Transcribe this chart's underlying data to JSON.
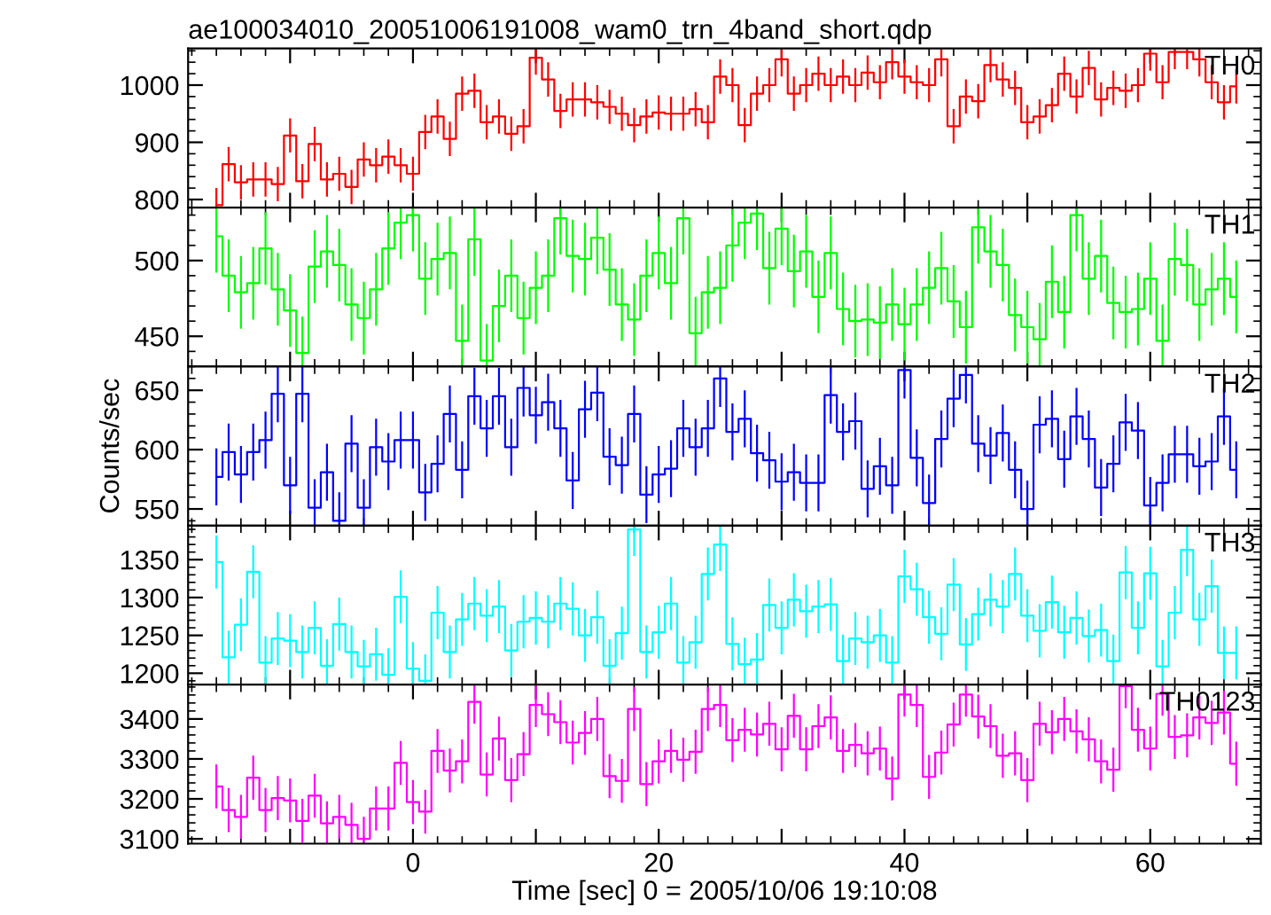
{
  "chart_data": [
    {
      "type": "step",
      "title": "ae100034010_20051006191008_wam0_trn_4band_short.qdp",
      "tick_labels": "y",
      "xlim": [
        -18.3,
        69
      ],
      "xticks": [
        {
          "value": -10,
          "label": null
        },
        {
          "value": 0,
          "label": null
        },
        {
          "value": 10,
          "label": null
        },
        {
          "value": 20,
          "label": null
        },
        {
          "value": 30,
          "label": null
        },
        {
          "value": 40,
          "label": null
        },
        {
          "value": 50,
          "label": null
        },
        {
          "value": 60,
          "label": null
        }
      ],
      "ylim": [
        786,
        1064
      ],
      "yticks": [
        800,
        900,
        1000
      ],
      "x": [
        -16,
        -15,
        -14,
        -13,
        -12,
        -11,
        -10,
        -9,
        -8,
        -7,
        -6,
        -5,
        -4,
        -3,
        -2,
        -1,
        0,
        1,
        2,
        3,
        4,
        5,
        6,
        7,
        8,
        9,
        10,
        11,
        12,
        13,
        14,
        15,
        16,
        17,
        18,
        19,
        20,
        21,
        22,
        23,
        24,
        25,
        26,
        27,
        28,
        29,
        30,
        31,
        32,
        33,
        34,
        35,
        36,
        37,
        38,
        39,
        40,
        41,
        42,
        43,
        44,
        45,
        46,
        47,
        48,
        49,
        50,
        51,
        52,
        53,
        54,
        55,
        56,
        57,
        58,
        59,
        60,
        61,
        62,
        63,
        64,
        65,
        66,
        67
      ],
      "series": [
        {
          "name": "TH0",
          "color": "#ff0000",
          "values": [
            790,
            862,
            830,
            835,
            835,
            827,
            912,
            832,
            897,
            835,
            845,
            822,
            870,
            860,
            875,
            860,
            845,
            918,
            945,
            906,
            985,
            990,
            935,
            945,
            915,
            928,
            1048,
            1010,
            955,
            975,
            975,
            970,
            962,
            950,
            930,
            945,
            952,
            950,
            950,
            958,
            935,
            1015,
            1000,
            930,
            985,
            1000,
            1045,
            985,
            1000,
            1020,
            1000,
            1015,
            1000,
            1022,
            1005,
            1040,
            1015,
            1005,
            1000,
            1045,
            928,
            980,
            972,
            1035,
            1010,
            995,
            935,
            945,
            965,
            1020,
            980,
            1030,
            975,
            995,
            990,
            1000,
            1055,
            1005,
            1058,
            1058,
            1045,
            1005,
            970,
            998
          ],
          "errors": [
            30,
            30,
            30,
            30,
            30,
            30,
            30,
            30,
            30,
            30,
            30,
            30,
            30,
            30,
            30,
            30,
            30,
            30,
            30,
            30,
            30,
            30,
            30,
            30,
            30,
            30,
            30,
            30,
            30,
            30,
            30,
            30,
            30,
            30,
            30,
            30,
            30,
            30,
            30,
            30,
            30,
            30,
            30,
            30,
            30,
            30,
            30,
            30,
            30,
            30,
            30,
            30,
            30,
            30,
            30,
            30,
            30,
            30,
            30,
            30,
            30,
            30,
            30,
            30,
            30,
            30,
            30,
            30,
            30,
            30,
            30,
            30,
            30,
            30,
            30,
            30,
            30,
            30,
            30,
            30,
            30,
            30,
            30,
            30
          ]
        }
      ]
    },
    {
      "type": "step",
      "tick_labels": "y",
      "xlim": [
        -18.3,
        69
      ],
      "xticks": [
        {
          "value": -10,
          "label": null
        },
        {
          "value": 0,
          "label": null
        },
        {
          "value": 10,
          "label": null
        },
        {
          "value": 20,
          "label": null
        },
        {
          "value": 30,
          "label": null
        },
        {
          "value": 40,
          "label": null
        },
        {
          "value": 50,
          "label": null
        },
        {
          "value": 60,
          "label": null
        }
      ],
      "ylim": [
        430,
        535
      ],
      "yticks": [
        450,
        500
      ],
      "x": [
        -16,
        -15,
        -14,
        -13,
        -12,
        -11,
        -10,
        -9,
        -8,
        -7,
        -6,
        -5,
        -4,
        -3,
        -2,
        -1,
        0,
        1,
        2,
        3,
        4,
        5,
        6,
        7,
        8,
        9,
        10,
        11,
        12,
        13,
        14,
        15,
        16,
        17,
        18,
        19,
        20,
        21,
        22,
        23,
        24,
        25,
        26,
        27,
        28,
        29,
        30,
        31,
        32,
        33,
        34,
        35,
        36,
        37,
        38,
        39,
        40,
        41,
        42,
        43,
        44,
        45,
        46,
        47,
        48,
        49,
        50,
        51,
        52,
        53,
        54,
        55,
        56,
        57,
        58,
        59,
        60,
        61,
        62,
        63,
        64,
        65,
        66,
        67
      ],
      "series": [
        {
          "name": "TH1",
          "color": "#00ff00",
          "values": [
            516,
            490,
            479,
            485,
            508,
            481,
            467,
            439,
            496,
            506,
            497,
            471,
            462,
            481,
            508,
            525,
            530,
            488,
            501,
            505,
            447,
            514,
            434,
            470,
            490,
            462,
            482,
            490,
            528,
            503,
            501,
            515,
            494,
            471,
            461,
            490,
            505,
            485,
            528,
            452,
            479,
            482,
            510,
            525,
            531,
            495,
            521,
            493,
            506,
            476,
            505,
            468,
            460,
            461,
            459,
            471,
            458,
            471,
            482,
            495,
            473,
            456,
            522,
            506,
            497,
            464,
            456,
            448,
            486,
            466,
            530,
            488,
            503,
            472,
            466,
            468,
            488,
            447,
            501,
            497,
            471,
            481,
            488,
            476
          ],
          "errors": [
            24,
            24,
            24,
            24,
            24,
            24,
            24,
            24,
            24,
            24,
            24,
            24,
            24,
            24,
            24,
            24,
            24,
            24,
            24,
            24,
            24,
            24,
            24,
            24,
            24,
            24,
            24,
            24,
            24,
            24,
            24,
            24,
            24,
            24,
            24,
            24,
            24,
            24,
            24,
            24,
            24,
            24,
            24,
            24,
            24,
            24,
            24,
            24,
            24,
            24,
            24,
            24,
            24,
            24,
            24,
            24,
            24,
            24,
            24,
            24,
            24,
            24,
            24,
            24,
            24,
            24,
            24,
            24,
            24,
            24,
            24,
            24,
            24,
            24,
            24,
            24,
            24,
            24,
            24,
            24,
            24,
            24,
            24,
            24
          ]
        }
      ]
    },
    {
      "type": "step",
      "tick_labels": "y",
      "ylabel": "Counts/sec",
      "xlim": [
        -18.3,
        69
      ],
      "xticks": [
        {
          "value": -10,
          "label": null
        },
        {
          "value": 0,
          "label": null
        },
        {
          "value": 10,
          "label": null
        },
        {
          "value": 20,
          "label": null
        },
        {
          "value": 30,
          "label": null
        },
        {
          "value": 40,
          "label": null
        },
        {
          "value": 50,
          "label": null
        },
        {
          "value": 60,
          "label": null
        }
      ],
      "ylim": [
        536,
        670
      ],
      "yticks": [
        550,
        600,
        650
      ],
      "x": [
        -16,
        -15,
        -14,
        -13,
        -12,
        -11,
        -10,
        -9,
        -8,
        -7,
        -6,
        -5,
        -4,
        -3,
        -2,
        -1,
        0,
        1,
        2,
        3,
        4,
        5,
        6,
        7,
        8,
        9,
        10,
        11,
        12,
        13,
        14,
        15,
        16,
        17,
        18,
        19,
        20,
        21,
        22,
        23,
        24,
        25,
        26,
        27,
        28,
        29,
        30,
        31,
        32,
        33,
        34,
        35,
        36,
        37,
        38,
        39,
        40,
        41,
        42,
        43,
        44,
        45,
        46,
        47,
        48,
        49,
        50,
        51,
        52,
        53,
        54,
        55,
        56,
        57,
        58,
        59,
        60,
        61,
        62,
        63,
        64,
        65,
        66,
        67
      ],
      "series": [
        {
          "name": "TH2",
          "color": "#0000ff",
          "values": [
            577,
            598,
            579,
            598,
            608,
            647,
            570,
            647,
            551,
            581,
            540,
            605,
            551,
            602,
            590,
            608,
            608,
            564,
            588,
            630,
            583,
            645,
            618,
            645,
            602,
            652,
            629,
            640,
            618,
            574,
            634,
            648,
            594,
            587,
            630,
            562,
            579,
            584,
            618,
            602,
            618,
            660,
            615,
            626,
            597,
            591,
            573,
            581,
            572,
            572,
            646,
            615,
            624,
            567,
            586,
            570,
            667,
            593,
            555,
            609,
            643,
            663,
            605,
            595,
            614,
            583,
            550,
            621,
            626,
            592,
            628,
            609,
            568,
            588,
            623,
            616,
            553,
            572,
            596,
            596,
            586,
            590,
            628,
            583
          ],
          "errors": [
            24,
            24,
            24,
            24,
            24,
            24,
            24,
            24,
            24,
            24,
            24,
            24,
            24,
            24,
            24,
            24,
            24,
            24,
            24,
            24,
            24,
            24,
            24,
            24,
            24,
            24,
            24,
            24,
            24,
            24,
            24,
            24,
            24,
            24,
            24,
            24,
            24,
            24,
            24,
            24,
            24,
            24,
            24,
            24,
            24,
            24,
            24,
            24,
            24,
            24,
            24,
            24,
            24,
            24,
            24,
            24,
            24,
            24,
            24,
            24,
            24,
            24,
            24,
            24,
            24,
            24,
            24,
            24,
            24,
            24,
            24,
            24,
            24,
            24,
            24,
            24,
            24,
            24,
            24,
            24,
            24,
            24,
            24,
            24
          ]
        }
      ]
    },
    {
      "type": "step",
      "tick_labels": "y",
      "xlim": [
        -18.3,
        69
      ],
      "xticks": [
        {
          "value": -10,
          "label": null
        },
        {
          "value": 0,
          "label": null
        },
        {
          "value": 10,
          "label": null
        },
        {
          "value": 20,
          "label": null
        },
        {
          "value": 30,
          "label": null
        },
        {
          "value": 40,
          "label": null
        },
        {
          "value": 50,
          "label": null
        },
        {
          "value": 60,
          "label": null
        }
      ],
      "ylim": [
        1185,
        1395
      ],
      "yticks": [
        1200,
        1250,
        1300,
        1350
      ],
      "x": [
        -16,
        -15,
        -14,
        -13,
        -12,
        -11,
        -10,
        -9,
        -8,
        -7,
        -6,
        -5,
        -4,
        -3,
        -2,
        -1,
        0,
        1,
        2,
        3,
        4,
        5,
        6,
        7,
        8,
        9,
        10,
        11,
        12,
        13,
        14,
        15,
        16,
        17,
        18,
        19,
        20,
        21,
        22,
        23,
        24,
        25,
        26,
        27,
        28,
        29,
        30,
        31,
        32,
        33,
        34,
        35,
        36,
        37,
        38,
        39,
        40,
        41,
        42,
        43,
        44,
        45,
        46,
        47,
        48,
        49,
        50,
        51,
        52,
        53,
        54,
        55,
        56,
        57,
        58,
        59,
        60,
        61,
        62,
        63,
        64,
        65,
        66,
        67
      ],
      "series": [
        {
          "name": "TH3",
          "color": "#00ffff",
          "values": [
            1347,
            1221,
            1264,
            1334,
            1214,
            1246,
            1243,
            1228,
            1260,
            1210,
            1265,
            1228,
            1209,
            1225,
            1198,
            1301,
            1206,
            1190,
            1280,
            1228,
            1271,
            1292,
            1276,
            1288,
            1230,
            1268,
            1273,
            1268,
            1292,
            1285,
            1250,
            1274,
            1210,
            1253,
            1390,
            1228,
            1254,
            1292,
            1214,
            1241,
            1331,
            1370,
            1239,
            1212,
            1218,
            1290,
            1260,
            1297,
            1282,
            1288,
            1291,
            1216,
            1246,
            1241,
            1250,
            1214,
            1328,
            1311,
            1274,
            1252,
            1317,
            1238,
            1278,
            1297,
            1288,
            1331,
            1276,
            1256,
            1294,
            1254,
            1273,
            1249,
            1257,
            1216,
            1333,
            1260,
            1332,
            1209,
            1280,
            1363,
            1271,
            1315,
            1227,
            1227
          ],
          "errors": [
            35,
            35,
            35,
            35,
            35,
            35,
            35,
            35,
            35,
            35,
            35,
            35,
            35,
            35,
            35,
            35,
            35,
            35,
            35,
            35,
            35,
            35,
            35,
            35,
            35,
            35,
            35,
            35,
            35,
            35,
            35,
            35,
            35,
            35,
            35,
            35,
            35,
            35,
            35,
            35,
            35,
            35,
            35,
            35,
            35,
            35,
            35,
            35,
            35,
            35,
            35,
            35,
            35,
            35,
            35,
            35,
            35,
            35,
            35,
            35,
            35,
            35,
            35,
            35,
            35,
            35,
            35,
            35,
            35,
            35,
            35,
            35,
            35,
            35,
            35,
            35,
            35,
            35,
            35,
            35,
            35,
            35,
            35,
            35
          ]
        }
      ]
    },
    {
      "type": "step",
      "xlabel": "Time [sec] 0 = 2005/10/06 19:10:08",
      "xlim": [
        -18.3,
        69
      ],
      "xticks": [
        {
          "value": -10,
          "label": null
        },
        0,
        {
          "value": 10,
          "label": null
        },
        20,
        {
          "value": 30,
          "label": null
        },
        40,
        {
          "value": 50,
          "label": null
        },
        60
      ],
      "ylim": [
        3088,
        3486
      ],
      "yticks": [
        3100,
        3200,
        3300,
        3400
      ],
      "x": [
        -16,
        -15,
        -14,
        -13,
        -12,
        -11,
        -10,
        -9,
        -8,
        -7,
        -6,
        -5,
        -4,
        -3,
        -2,
        -1,
        0,
        1,
        2,
        3,
        4,
        5,
        6,
        7,
        8,
        9,
        10,
        11,
        12,
        13,
        14,
        15,
        16,
        17,
        18,
        19,
        20,
        21,
        22,
        23,
        24,
        25,
        26,
        27,
        28,
        29,
        30,
        31,
        32,
        33,
        34,
        35,
        36,
        37,
        38,
        39,
        40,
        41,
        42,
        43,
        44,
        45,
        46,
        47,
        48,
        49,
        50,
        51,
        52,
        53,
        54,
        55,
        56,
        57,
        58,
        59,
        60,
        61,
        62,
        63,
        64,
        65,
        66,
        67
      ],
      "series": [
        {
          "name": "TH0123",
          "color": "#ff00ff",
          "values": [
            3231,
            3172,
            3155,
            3253,
            3172,
            3202,
            3196,
            3145,
            3208,
            3139,
            3155,
            3135,
            3100,
            3176,
            3176,
            3290,
            3192,
            3168,
            3320,
            3271,
            3294,
            3443,
            3261,
            3351,
            3247,
            3312,
            3435,
            3412,
            3392,
            3341,
            3365,
            3400,
            3257,
            3245,
            3425,
            3237,
            3294,
            3320,
            3298,
            3318,
            3425,
            3435,
            3347,
            3373,
            3361,
            3388,
            3324,
            3408,
            3324,
            3382,
            3404,
            3320,
            3335,
            3314,
            3326,
            3251,
            3461,
            3435,
            3255,
            3316,
            3386,
            3461,
            3406,
            3382,
            3308,
            3314,
            3247,
            3388,
            3367,
            3400,
            3369,
            3349,
            3294,
            3273,
            3482,
            3373,
            3326,
            3463,
            3355,
            3359,
            3404,
            3390,
            3416,
            3288
          ],
          "errors": [
            55,
            55,
            55,
            55,
            55,
            55,
            55,
            55,
            55,
            55,
            55,
            55,
            55,
            55,
            55,
            55,
            55,
            55,
            55,
            55,
            55,
            55,
            55,
            55,
            55,
            55,
            55,
            55,
            55,
            55,
            55,
            55,
            55,
            55,
            55,
            55,
            55,
            55,
            55,
            55,
            55,
            55,
            55,
            55,
            55,
            55,
            55,
            55,
            55,
            55,
            55,
            55,
            55,
            55,
            55,
            55,
            55,
            55,
            55,
            55,
            55,
            55,
            55,
            55,
            55,
            55,
            55,
            55,
            55,
            55,
            55,
            55,
            55,
            55,
            55,
            55,
            55,
            55,
            55,
            55,
            55,
            55,
            55,
            55
          ]
        }
      ]
    }
  ]
}
